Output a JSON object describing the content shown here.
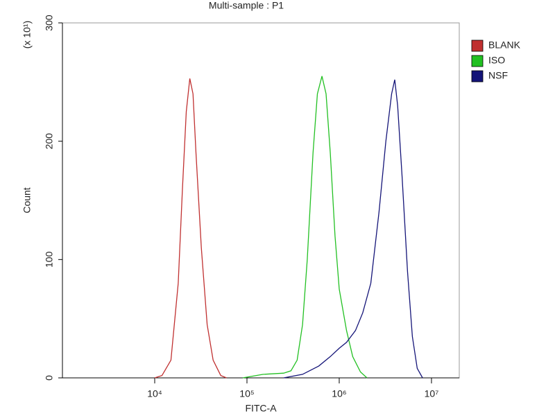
{
  "chart_data": {
    "type": "line",
    "title": "Multi-sample : P1",
    "xlabel": "FITC-A",
    "ylabel": "Count",
    "yunit": "(x 10¹)",
    "xscale": "log",
    "xlim": [
      1000,
      20000000
    ],
    "xticks": [
      {
        "value": 10000,
        "label": "10⁴"
      },
      {
        "value": 100000,
        "label": "10⁵"
      },
      {
        "value": 1000000,
        "label": "10⁶"
      },
      {
        "value": 10000000,
        "label": "10⁷"
      }
    ],
    "ylim": [
      0,
      300
    ],
    "yticks": [
      0,
      100,
      200,
      300
    ],
    "legend": "upper right",
    "series": [
      {
        "name": "BLANK",
        "color": "#c03030",
        "x": [
          10000,
          12000,
          15000,
          18000,
          20000,
          22000,
          24000,
          26000,
          28000,
          32000,
          37000,
          43000,
          52000,
          60000
        ],
        "values": [
          0,
          2,
          15,
          80,
          160,
          225,
          253,
          240,
          190,
          110,
          45,
          15,
          2,
          0
        ]
      },
      {
        "name": "ISO",
        "color": "#22c022",
        "x": [
          90000,
          150000,
          250000,
          300000,
          350000,
          400000,
          450000,
          520000,
          580000,
          650000,
          720000,
          800000,
          900000,
          1000000,
          1200000,
          1400000,
          1700000,
          2000000
        ],
        "values": [
          0,
          3,
          4,
          6,
          15,
          45,
          100,
          190,
          240,
          255,
          240,
          190,
          120,
          75,
          40,
          18,
          5,
          0
        ]
      },
      {
        "name": "NSF",
        "color": "#141478",
        "x": [
          250000,
          400000,
          600000,
          800000,
          1000000,
          1200000,
          1500000,
          1800000,
          2200000,
          2700000,
          3200000,
          3700000,
          4000000,
          4300000,
          4800000,
          5500000,
          6200000,
          7000000,
          8000000
        ],
        "values": [
          0,
          3,
          10,
          18,
          25,
          30,
          40,
          55,
          80,
          140,
          200,
          240,
          252,
          230,
          170,
          90,
          35,
          8,
          0
        ]
      }
    ]
  }
}
